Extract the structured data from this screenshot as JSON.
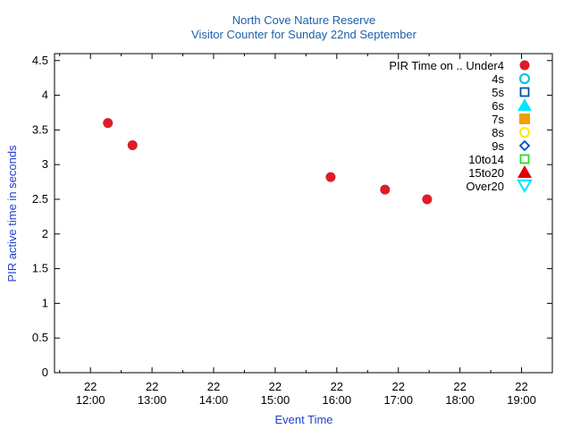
{
  "chart_data": {
    "type": "scatter",
    "title": "North Cove Nature Reserve",
    "subtitle": "Visitor Counter for Sunday 22nd September",
    "xlabel": "Event Time",
    "ylabel": "PIR active time in seconds",
    "xlim": [
      "11:25",
      "19:30"
    ],
    "ylim": [
      0,
      4.6
    ],
    "y_ticks": [
      "0",
      "0.5",
      "1",
      "1.5",
      "2",
      "2.5",
      "3",
      "3.5",
      "4",
      "4.5"
    ],
    "x_ticks": [
      {
        "time": "12:00",
        "day": "22",
        "label": "12:00"
      },
      {
        "time": "13:00",
        "day": "22",
        "label": "13:00"
      },
      {
        "time": "14:00",
        "day": "22",
        "label": "14:00"
      },
      {
        "time": "15:00",
        "day": "22",
        "label": "15:00"
      },
      {
        "time": "16:00",
        "day": "22",
        "label": "16:00"
      },
      {
        "time": "17:00",
        "day": "22",
        "label": "17:00"
      },
      {
        "time": "18:00",
        "day": "22",
        "label": "18:00"
      },
      {
        "time": "19:00",
        "day": "22",
        "label": "19:00"
      }
    ],
    "grid": false,
    "legend_position": "top-right",
    "series": [
      {
        "name": "PIR Time on .. Under4",
        "marker": "filled-circle",
        "color": "#dd1c2a",
        "points": [
          {
            "x": "12:17",
            "y": 3.6
          },
          {
            "x": "12:41",
            "y": 3.28
          },
          {
            "x": "15:54",
            "y": 2.82
          },
          {
            "x": "16:47",
            "y": 2.64
          },
          {
            "x": "17:28",
            "y": 2.5
          }
        ]
      },
      {
        "name": "4s",
        "marker": "open-circle",
        "color": "#00c8e0",
        "points": []
      },
      {
        "name": "5s",
        "marker": "open-square",
        "color": "#0050b0",
        "points": []
      },
      {
        "name": "6s",
        "marker": "filled-triangle-up",
        "color": "#00e8ff",
        "points": []
      },
      {
        "name": "7s",
        "marker": "filled-square",
        "color": "#f0a000",
        "points": []
      },
      {
        "name": "8s",
        "marker": "open-circle",
        "color": "#ffee00",
        "points": []
      },
      {
        "name": "9s",
        "marker": "open-diamond",
        "color": "#0050b0",
        "points": []
      },
      {
        "name": "10to14",
        "marker": "open-square",
        "color": "#20e020",
        "points": []
      },
      {
        "name": "15to20",
        "marker": "filled-triangle-up",
        "color": "#e00000",
        "points": []
      },
      {
        "name": "Over20",
        "marker": "open-triangle-down",
        "color": "#00e8ff",
        "points": []
      }
    ]
  }
}
